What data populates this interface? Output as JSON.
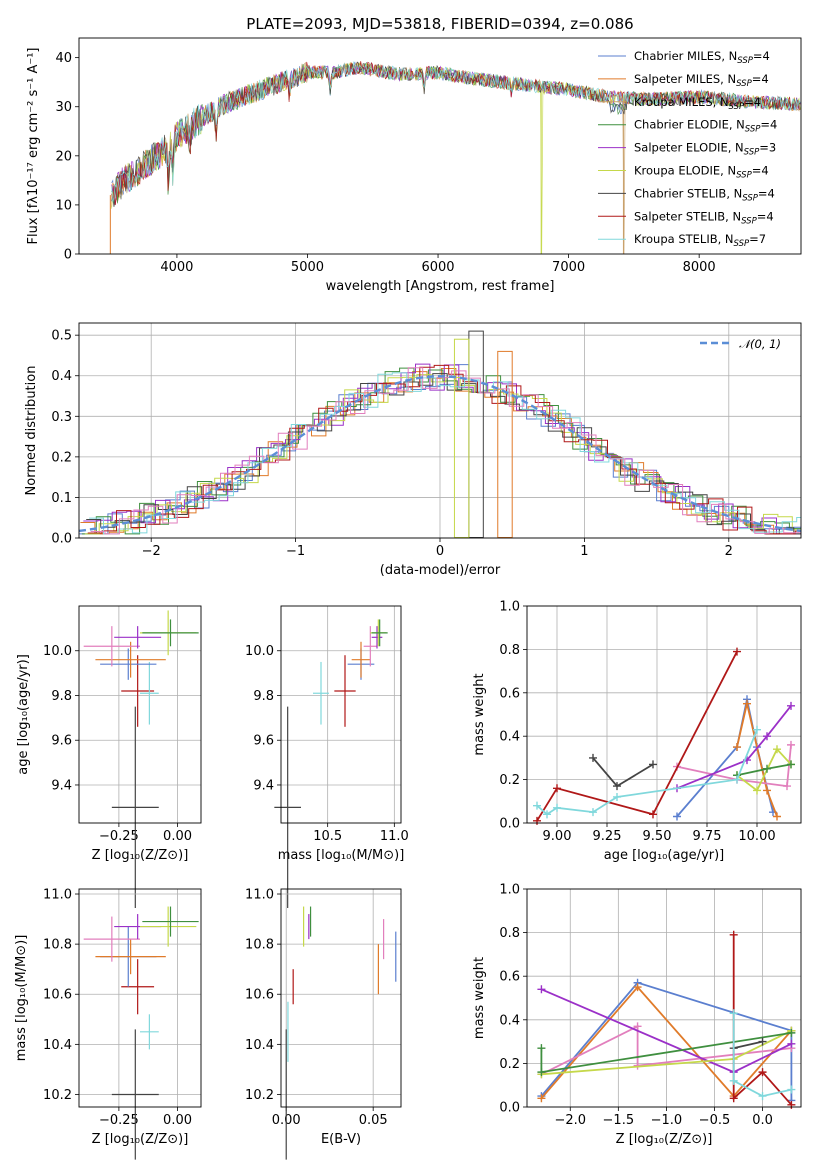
{
  "figure": {
    "title": "PLATE=2093, MJD=53818, FIBERID=0394, z=0.086"
  },
  "chart_data": [
    {
      "panel": "spectrum",
      "type": "line",
      "xlabel": "wavelength [Angstrom, rest frame]",
      "ylabel": "Flux [fλ10⁻¹⁷ erg cm⁻² s⁻¹ A⁻¹]",
      "xlim": [
        3250,
        8780
      ],
      "ylim": [
        0,
        44
      ],
      "xticks": [
        4000,
        5000,
        6000,
        7000,
        8000
      ],
      "yticks": [
        0,
        10,
        20,
        30,
        40
      ],
      "legend_position": "top-right",
      "continuum_x": [
        3500,
        3600,
        3800,
        3900,
        4000,
        4200,
        4400,
        4600,
        4800,
        5000,
        5200,
        5400,
        5600,
        5800,
        6000,
        6200,
        6500,
        6800,
        7000,
        7300,
        7600,
        8000,
        8400,
        8780
      ],
      "continuum_y": [
        12,
        15,
        19,
        21,
        24,
        28,
        31,
        33,
        35,
        37,
        37,
        38,
        37,
        36.5,
        37,
        36,
        35,
        34,
        33.5,
        32,
        31.5,
        32,
        31,
        30.5
      ],
      "series": [
        {
          "name": "Chabrier MILES, N_SSP=4",
          "legend": "Chabrier MILES, N",
          "legend_sub": "SSP",
          "legend_tail": "=4",
          "color": "#5b7fcf",
          "drop_x": null
        },
        {
          "name": "Salpeter MILES, N_SSP=4",
          "legend": "Salpeter MILES, N",
          "legend_sub": "SSP",
          "legend_tail": "=4",
          "color": "#e07b2a",
          "drop_x": 3490
        },
        {
          "name": "Kroupa MILES, N_SSP=4",
          "legend": "Kroupa MILES, N",
          "legend_sub": "SSP",
          "legend_tail": "=4",
          "color": "#c8a06a",
          "drop_x": 7420
        },
        {
          "name": "Chabrier ELODIE, N_SSP=4",
          "legend": "Chabrier ELODIE, N",
          "legend_sub": "SSP",
          "legend_tail": "=4",
          "color": "#3f8f3f",
          "drop_x": null
        },
        {
          "name": "Salpeter ELODIE, N_SSP=3",
          "legend": "Salpeter ELODIE, N",
          "legend_sub": "SSP",
          "legend_tail": "=3",
          "color": "#9b30c8",
          "drop_x": null
        },
        {
          "name": "Kroupa ELODIE, N_SSP=4",
          "legend": "Kroupa ELODIE, N",
          "legend_sub": "SSP",
          "legend_tail": "=4",
          "color": "#c5d84a",
          "drop_x": 6790
        },
        {
          "name": "Chabrier STELIB, N_SSP=4",
          "legend": "Chabrier STELIB, N",
          "legend_sub": "SSP",
          "legend_tail": "=4",
          "color": "#444444",
          "drop_x": null
        },
        {
          "name": "Salpeter STELIB, N_SSP=4",
          "legend": "Salpeter STELIB, N",
          "legend_sub": "SSP",
          "legend_tail": "=4",
          "color": "#b01818",
          "drop_x": null
        },
        {
          "name": "Kroupa STELIB, N_SSP=7",
          "legend": "Kroupa STELIB, N",
          "legend_sub": "SSP",
          "legend_tail": "=7",
          "color": "#80d8dc",
          "drop_x": null
        }
      ]
    },
    {
      "panel": "residuals",
      "type": "line",
      "xlabel": "(data-model)/error",
      "ylabel": "Normed distribution",
      "xlim": [
        -2.5,
        2.5
      ],
      "ylim": [
        0,
        0.53
      ],
      "xticks": [
        -2,
        -1,
        0,
        1,
        2
      ],
      "yticks": [
        0.0,
        0.1,
        0.2,
        0.3,
        0.4,
        0.5
      ],
      "grid": true,
      "legend_position": "top-right",
      "reference": {
        "label": "𝒩(0, 1)",
        "mean": 0,
        "sigma": 1,
        "color": "#5b8ed6"
      },
      "histogram_colors": [
        "#5b7fcf",
        "#e07b2a",
        "#3f8f3f",
        "#9b30c8",
        "#c5d84a",
        "#444444",
        "#b01818",
        "#80d8dc",
        "#e27fbd"
      ],
      "highlight_bins": [
        {
          "x": 0.25,
          "y": 0.51
        },
        {
          "x": 0.15,
          "y": 0.49
        },
        {
          "x": 0.45,
          "y": 0.46
        }
      ]
    },
    {
      "panel": "Z-age",
      "type": "scatter",
      "xlabel": "Z [log₁₀(Z/Z⊙)]",
      "ylabel": "age  [log₁₀(age/yr)]",
      "xlim": [
        -0.42,
        0.1
      ],
      "ylim": [
        9.23,
        10.2
      ],
      "xticks": [
        -0.25,
        0.0
      ],
      "yticks": [
        9.4,
        9.6,
        9.8,
        10.0
      ],
      "points": [
        {
          "x": -0.18,
          "y": 9.3,
          "xerr": 0.1,
          "yerr": 0.45,
          "color": "#444444"
        },
        {
          "x": -0.17,
          "y": 9.82,
          "xerr": 0.07,
          "yerr": 0.16,
          "color": "#b01818"
        },
        {
          "x": -0.12,
          "y": 9.81,
          "xerr": 0.04,
          "yerr": 0.14,
          "color": "#80d8dc"
        },
        {
          "x": -0.21,
          "y": 9.94,
          "xerr": 0.12,
          "yerr": 0.07,
          "color": "#5b7fcf"
        },
        {
          "x": -0.2,
          "y": 9.96,
          "xerr": 0.15,
          "yerr": 0.08,
          "color": "#e07b2a"
        },
        {
          "x": -0.28,
          "y": 10.02,
          "xerr": 0.12,
          "yerr": 0.09,
          "color": "#e27fbd"
        },
        {
          "x": -0.17,
          "y": 10.06,
          "xerr": 0.1,
          "yerr": 0.05,
          "color": "#9b30c8"
        },
        {
          "x": -0.04,
          "y": 10.08,
          "xerr": 0.12,
          "yerr": 0.1,
          "color": "#c5d84a"
        },
        {
          "x": -0.03,
          "y": 10.08,
          "xerr": 0.12,
          "yerr": 0.06,
          "color": "#3f8f3f"
        }
      ]
    },
    {
      "panel": "mass-age",
      "type": "scatter",
      "xlabel": "mass [log₁₀(M/M⊙)]",
      "ylabel": "",
      "xlim": [
        10.15,
        11.05
      ],
      "ylim": [
        9.23,
        10.2
      ],
      "xticks": [
        10.5,
        11.0
      ],
      "yticks": [
        9.4,
        9.6,
        9.8,
        10.0
      ],
      "points": [
        {
          "x": 10.2,
          "y": 9.3,
          "xerr": 0.1,
          "yerr": 0.45,
          "color": "#444444"
        },
        {
          "x": 10.63,
          "y": 9.82,
          "xerr": 0.08,
          "yerr": 0.16,
          "color": "#b01818"
        },
        {
          "x": 10.45,
          "y": 9.81,
          "xerr": 0.06,
          "yerr": 0.14,
          "color": "#80d8dc"
        },
        {
          "x": 10.75,
          "y": 9.94,
          "xerr": 0.1,
          "yerr": 0.07,
          "color": "#5b7fcf"
        },
        {
          "x": 10.75,
          "y": 9.96,
          "xerr": 0.07,
          "yerr": 0.08,
          "color": "#e07b2a"
        },
        {
          "x": 10.82,
          "y": 10.02,
          "xerr": 0.05,
          "yerr": 0.09,
          "color": "#e27fbd"
        },
        {
          "x": 10.87,
          "y": 10.06,
          "xerr": 0.04,
          "yerr": 0.05,
          "color": "#9b30c8"
        },
        {
          "x": 10.88,
          "y": 10.08,
          "xerr": 0.06,
          "yerr": 0.06,
          "color": "#c5d84a"
        },
        {
          "x": 10.89,
          "y": 10.08,
          "xerr": 0.06,
          "yerr": 0.06,
          "color": "#3f8f3f"
        }
      ]
    },
    {
      "panel": "age-weight",
      "type": "line",
      "xlabel": "age  [log₁₀(age/yr)]",
      "ylabel": "mass weight",
      "xlim": [
        8.85,
        10.22
      ],
      "ylim": [
        0,
        1.0
      ],
      "xticks": [
        9.0,
        9.25,
        9.5,
        9.75,
        10.0
      ],
      "yticks": [
        0.0,
        0.2,
        0.4,
        0.6,
        0.8,
        1.0
      ],
      "grid": true,
      "series": [
        {
          "color": "#5b7fcf",
          "x": [
            9.6,
            9.9,
            9.95,
            10.0,
            10.08
          ],
          "y": [
            0.03,
            0.35,
            0.57,
            0.35,
            0.05
          ]
        },
        {
          "color": "#e07b2a",
          "x": [
            9.9,
            9.95,
            10.05,
            10.1
          ],
          "y": [
            0.35,
            0.55,
            0.15,
            0.03
          ]
        },
        {
          "color": "#e27fbd",
          "x": [
            9.6,
            9.9,
            10.15,
            10.17
          ],
          "y": [
            0.26,
            0.2,
            0.17,
            0.36
          ]
        },
        {
          "color": "#9b30c8",
          "x": [
            9.6,
            9.95,
            10.05,
            10.17
          ],
          "y": [
            0.16,
            0.29,
            0.4,
            0.54
          ]
        },
        {
          "color": "#c5d84a",
          "x": [
            9.9,
            10.0,
            10.1,
            10.17
          ],
          "y": [
            0.22,
            0.15,
            0.34,
            0.27
          ]
        },
        {
          "color": "#3f8f3f",
          "x": [
            9.9,
            10.05,
            10.17
          ],
          "y": [
            0.22,
            0.25,
            0.27
          ]
        },
        {
          "color": "#444444",
          "x": [
            9.18,
            9.3,
            9.48
          ],
          "y": [
            0.3,
            0.17,
            0.27
          ]
        },
        {
          "color": "#b01818",
          "x": [
            8.9,
            9.0,
            9.48,
            9.9
          ],
          "y": [
            0.01,
            0.16,
            0.04,
            0.79
          ]
        },
        {
          "color": "#80d8dc",
          "x": [
            8.9,
            8.95,
            9.0,
            9.18,
            9.3,
            9.9,
            10.0
          ],
          "y": [
            0.08,
            0.04,
            0.07,
            0.05,
            0.12,
            0.2,
            0.43
          ]
        }
      ]
    },
    {
      "panel": "Z-mass",
      "type": "scatter",
      "xlabel": "Z [log₁₀(Z/Z⊙)]",
      "ylabel": "mass [log₁₀(M/M⊙)]",
      "xlim": [
        -0.42,
        0.1
      ],
      "ylim": [
        10.15,
        11.02
      ],
      "xticks": [
        -0.25,
        0.0
      ],
      "yticks": [
        10.2,
        10.4,
        10.6,
        10.8,
        11.0
      ],
      "points": [
        {
          "x": -0.18,
          "y": 10.2,
          "xerr": 0.1,
          "yerr": 0.26,
          "color": "#444444"
        },
        {
          "x": -0.17,
          "y": 10.63,
          "xerr": 0.07,
          "yerr": 0.11,
          "color": "#b01818"
        },
        {
          "x": -0.12,
          "y": 10.45,
          "xerr": 0.04,
          "yerr": 0.07,
          "color": "#80d8dc"
        },
        {
          "x": -0.21,
          "y": 10.75,
          "xerr": 0.12,
          "yerr": 0.12,
          "color": "#5b7fcf"
        },
        {
          "x": -0.2,
          "y": 10.75,
          "xerr": 0.15,
          "yerr": 0.07,
          "color": "#e07b2a"
        },
        {
          "x": -0.28,
          "y": 10.82,
          "xerr": 0.12,
          "yerr": 0.09,
          "color": "#e27fbd"
        },
        {
          "x": -0.17,
          "y": 10.87,
          "xerr": 0.1,
          "yerr": 0.05,
          "color": "#9b30c8"
        },
        {
          "x": -0.04,
          "y": 10.87,
          "xerr": 0.12,
          "yerr": 0.08,
          "color": "#c5d84a"
        },
        {
          "x": -0.03,
          "y": 10.89,
          "xerr": 0.12,
          "yerr": 0.06,
          "color": "#3f8f3f"
        }
      ]
    },
    {
      "panel": "EBV-mass",
      "type": "scatter",
      "xlabel": "E(B-V)",
      "ylabel": "",
      "xlim": [
        -0.003,
        0.066
      ],
      "ylim": [
        10.15,
        11.02
      ],
      "xticks": [
        0.0,
        0.05
      ],
      "yticks": [
        10.2,
        10.4,
        10.6,
        10.8,
        11.0
      ],
      "points": [
        {
          "x": 0.0,
          "y": 10.2,
          "yerr": 0.26,
          "color": "#444444"
        },
        {
          "x": 0.004,
          "y": 10.63,
          "yerr": 0.07,
          "color": "#b01818"
        },
        {
          "x": 0.001,
          "y": 10.45,
          "yerr": 0.12,
          "color": "#80d8dc"
        },
        {
          "x": 0.063,
          "y": 10.75,
          "yerr": 0.1,
          "color": "#5b7fcf"
        },
        {
          "x": 0.053,
          "y": 10.7,
          "yerr": 0.1,
          "color": "#e07b2a"
        },
        {
          "x": 0.056,
          "y": 10.82,
          "yerr": 0.08,
          "color": "#e27fbd"
        },
        {
          "x": 0.013,
          "y": 10.87,
          "yerr": 0.05,
          "color": "#9b30c8"
        },
        {
          "x": 0.01,
          "y": 10.87,
          "yerr": 0.08,
          "color": "#c5d84a"
        },
        {
          "x": 0.014,
          "y": 10.89,
          "yerr": 0.06,
          "color": "#3f8f3f"
        }
      ]
    },
    {
      "panel": "Z-weight",
      "type": "line",
      "xlabel": "Z [log₁₀(Z/Z⊙)]",
      "ylabel": "mass weight",
      "xlim": [
        -2.45,
        0.4
      ],
      "ylim": [
        0,
        1.0
      ],
      "xticks": [
        -2.0,
        -1.5,
        -1.0,
        -0.5,
        0.0
      ],
      "yticks": [
        0.0,
        0.2,
        0.4,
        0.6,
        0.8,
        1.0
      ],
      "grid": true,
      "series": [
        {
          "color": "#5b7fcf",
          "x": [
            -2.3,
            -1.3,
            0.3,
            0.3
          ],
          "y": [
            0.05,
            0.57,
            0.35,
            0.03
          ]
        },
        {
          "color": "#e07b2a",
          "x": [
            -2.3,
            -1.3,
            -0.3,
            0.3
          ],
          "y": [
            0.04,
            0.55,
            0.05,
            0.35
          ]
        },
        {
          "color": "#e27fbd",
          "x": [
            -2.3,
            -1.3,
            -1.3,
            0.3
          ],
          "y": [
            0.15,
            0.37,
            0.19,
            0.27
          ]
        },
        {
          "color": "#9b30c8",
          "x": [
            -2.3,
            -0.3,
            0.3
          ],
          "y": [
            0.54,
            0.16,
            0.29
          ]
        },
        {
          "color": "#c5d84a",
          "x": [
            -2.3,
            -0.3,
            0.3
          ],
          "y": [
            0.15,
            0.22,
            0.35
          ]
        },
        {
          "color": "#3f8f3f",
          "x": [
            -2.3,
            -2.3,
            0.3
          ],
          "y": [
            0.27,
            0.16,
            0.34
          ]
        },
        {
          "color": "#444444",
          "x": [
            -0.3,
            0.0
          ],
          "y": [
            0.27,
            0.3
          ]
        },
        {
          "color": "#b01818",
          "x": [
            -0.3,
            -0.3,
            0.0,
            0.3
          ],
          "y": [
            0.79,
            0.04,
            0.16,
            0.01
          ]
        },
        {
          "color": "#80d8dc",
          "x": [
            -0.3,
            -0.3,
            0.0,
            0.3
          ],
          "y": [
            0.43,
            0.12,
            0.05,
            0.08
          ]
        }
      ]
    }
  ]
}
